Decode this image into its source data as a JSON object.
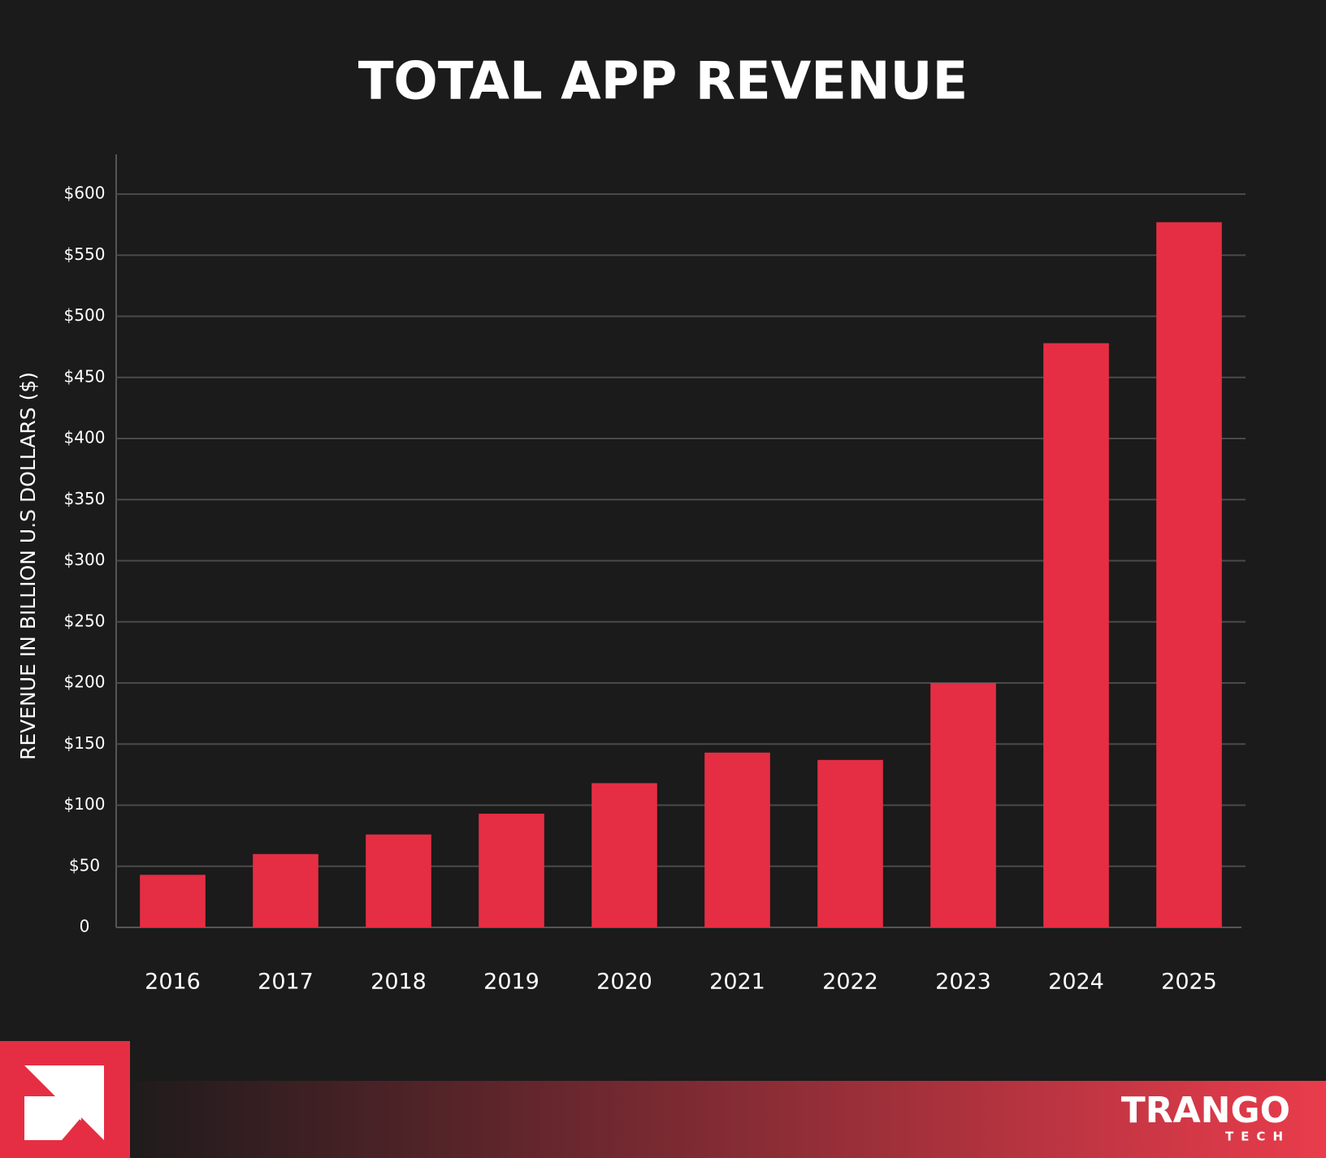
{
  "chart_data": {
    "type": "bar",
    "title": "TOTAL APP REVENUE",
    "y_label": "REVENUE IN BILLION U.S DOLLARS ($)",
    "categories": [
      "2016",
      "2017",
      "2018",
      "2019",
      "2020",
      "2021",
      "2022",
      "2023",
      "2024",
      "2025"
    ],
    "values": [
      43,
      60,
      76,
      93,
      118,
      143,
      137,
      200,
      478,
      577
    ],
    "color": "#e52e43",
    "ylim": [
      0,
      600
    ],
    "yticks": [
      0,
      {
        "value": 50,
        "label": "$50"
      },
      {
        "value": 100,
        "label": "$100"
      },
      {
        "value": 150,
        "label": "$150"
      },
      {
        "value": 200,
        "label": "$200"
      },
      {
        "value": 250,
        "label": "$250"
      },
      {
        "value": 300,
        "label": "$300"
      },
      {
        "value": 350,
        "label": "$350"
      },
      {
        "value": 400,
        "label": "$400"
      },
      {
        "value": 450,
        "label": "$450"
      },
      {
        "value": 500,
        "label": "$500"
      },
      {
        "value": 550,
        "label": "$550"
      },
      {
        "value": 600,
        "label": "$600"
      }
    ],
    "grid": true
  },
  "branding": {
    "name": "TRANGO",
    "sub": "TECH"
  }
}
